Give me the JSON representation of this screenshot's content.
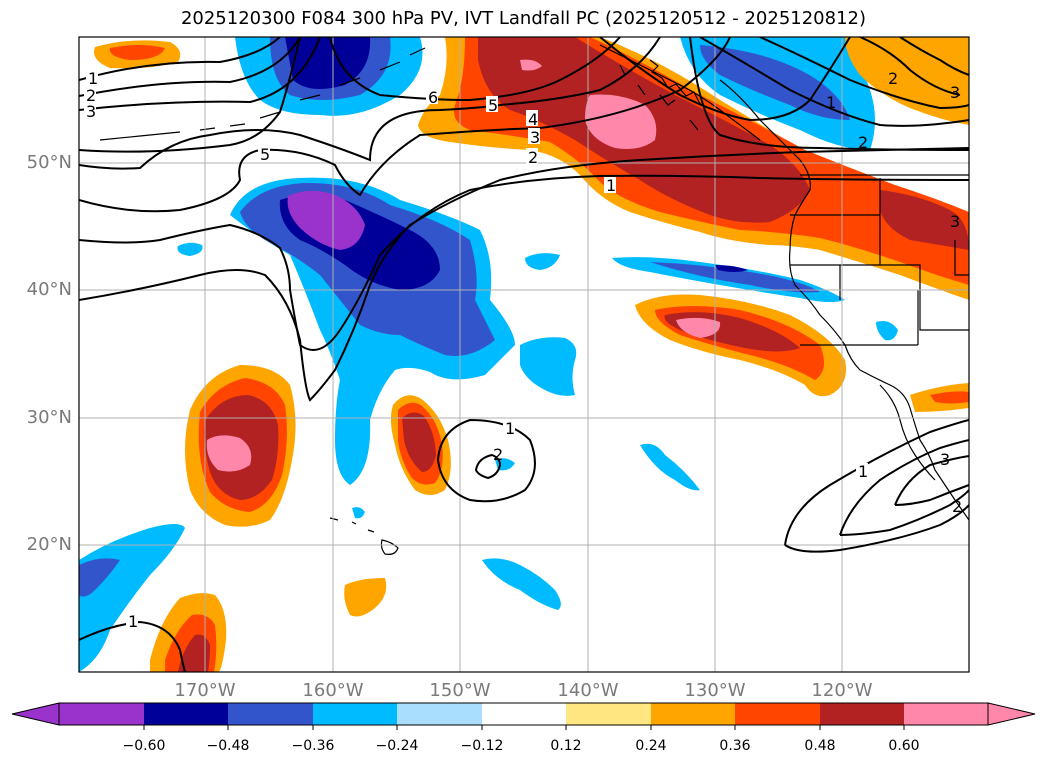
{
  "title": "2025120300 F084 300 hPa PV, IVT Landfall PC (2025120512 - 2025120812)",
  "lat_labels": [
    "50°N",
    "40°N",
    "30°N",
    "20°N"
  ],
  "lon_labels": [
    "170°W",
    "160°W",
    "150°W",
    "140°W",
    "130°W",
    "120°W"
  ],
  "colorbar": {
    "ticks": [
      "−0.60",
      "−0.48",
      "−0.36",
      "−0.24",
      "−0.12",
      "0.12",
      "0.24",
      "0.36",
      "0.48",
      "0.60"
    ],
    "colors": [
      "#9933cc",
      "#000099",
      "#3355cc",
      "#00bbff",
      "#aadeff",
      "#ffffff",
      "#ffe680",
      "#ffa500",
      "#ff4500",
      "#b22222",
      "#ff88aa"
    ]
  },
  "contour_labels": [
    "1",
    "2",
    "3",
    "6",
    "5",
    "4",
    "3",
    "2",
    "1",
    "5",
    "1",
    "2",
    "3",
    "2",
    "1",
    "2",
    "1",
    "3",
    "2",
    "1",
    "3"
  ]
}
